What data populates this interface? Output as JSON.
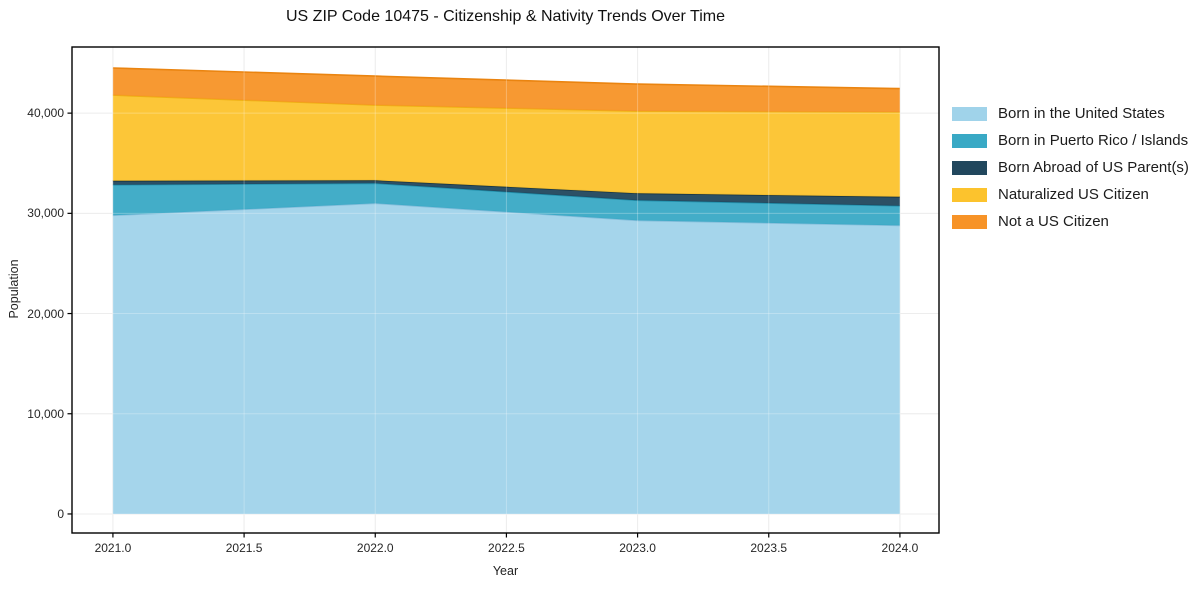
{
  "figure": {
    "title": "US ZIP Code 10475 - Citizenship & Nativity Trends Over Time"
  },
  "chart_data": {
    "type": "area",
    "stacked": true,
    "title": "US ZIP Code 10475 - Citizenship & Nativity Trends Over Time",
    "xlabel": "Year",
    "ylabel": "Population",
    "x": [
      2021,
      2022,
      2023,
      2024
    ],
    "series": [
      {
        "name": "Born in the United States",
        "values": [
          29800,
          31000,
          29300,
          28800
        ],
        "color": "#a0d3ea",
        "edge": "#85bedb"
      },
      {
        "name": "Born in Puerto Rico / Islands",
        "values": [
          3050,
          2000,
          2000,
          1950
        ],
        "color": "#39a9c5",
        "edge": "#2391ad"
      },
      {
        "name": "Born Abroad of US Parent(s)",
        "values": [
          400,
          300,
          700,
          900
        ],
        "color": "#21475d",
        "edge": "#173544"
      },
      {
        "name": "Naturalized US Citizen",
        "values": [
          8550,
          7500,
          8200,
          8450
        ],
        "color": "#fcc32d",
        "edge": "#eeb013"
      },
      {
        "name": "Not a US Citizen",
        "values": [
          2700,
          2900,
          2700,
          2350
        ],
        "color": "#f79327",
        "edge": "#ea8410"
      }
    ],
    "stacked_totals": [
      44500,
      43700,
      42900,
      42450
    ],
    "x_tick_values": [
      2021.0,
      2021.5,
      2022.0,
      2022.5,
      2023.0,
      2023.5,
      2024.0
    ],
    "x_tick_labels": [
      "2021.0",
      "2021.5",
      "2022.0",
      "2022.5",
      "2023.0",
      "2023.5",
      "2024.0"
    ],
    "y_tick_values": [
      0,
      10000,
      20000,
      30000,
      40000
    ],
    "y_tick_labels": [
      "0",
      "10,000",
      "20,000",
      "30,000",
      "40,000"
    ],
    "xlim": [
      2020.844,
      2024.149
    ],
    "ylim": [
      -1900,
      46600
    ],
    "grid": true,
    "legend_position": "outside-right"
  },
  "style": {
    "frame_color": "#000000",
    "grid_color": "#e6e6e6",
    "background": "#ffffff",
    "text_color": "#262626"
  }
}
